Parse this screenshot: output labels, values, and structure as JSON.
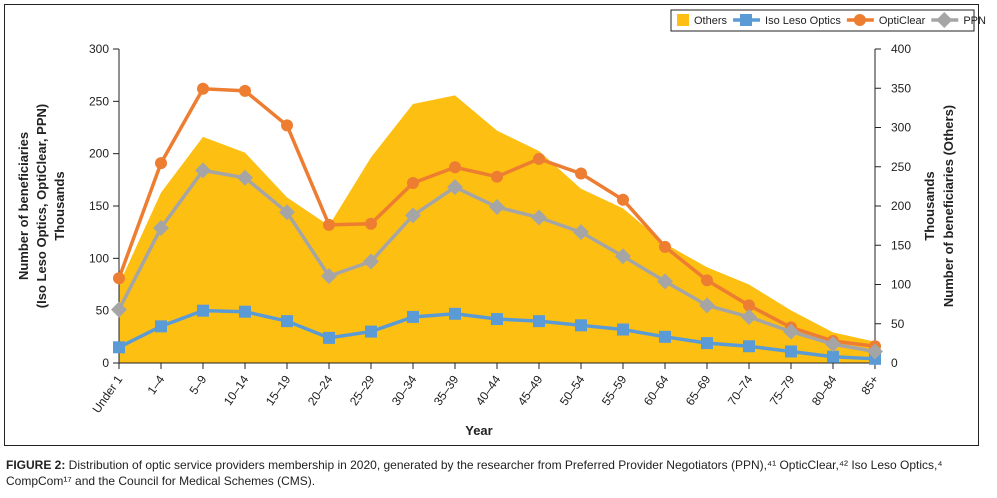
{
  "chart_data": {
    "type": "line+area",
    "categories": [
      "Under 1",
      "1–4",
      "5–9",
      "10–14",
      "15–19",
      "20–24",
      "25–29",
      "30–34",
      "35–39",
      "40–44",
      "45–49",
      "50–54",
      "55–59",
      "60–64",
      "65–69",
      "70–74",
      "75–79",
      "80–84",
      "85+"
    ],
    "series": [
      {
        "name": "Others",
        "kind": "area",
        "axis": "right",
        "color": "#FDBF12",
        "values": [
          100,
          217,
          288,
          268,
          211,
          175,
          262,
          330,
          341,
          296,
          270,
          222,
          197,
          152,
          122,
          100,
          67,
          39,
          27
        ]
      },
      {
        "name": "Iso Leso Optics",
        "kind": "line",
        "marker": "square",
        "axis": "left",
        "color": "#5B9BD5",
        "values": [
          15,
          35,
          50,
          49,
          40,
          24,
          30,
          44,
          47,
          42,
          40,
          36,
          32,
          25,
          19,
          16,
          11,
          6,
          4
        ]
      },
      {
        "name": "OptiClear",
        "kind": "line",
        "marker": "circle",
        "axis": "left",
        "color": "#ED7D31",
        "values": [
          81,
          191,
          262,
          260,
          227,
          132,
          133,
          172,
          187,
          178,
          195,
          181,
          156,
          111,
          79,
          55,
          34,
          21,
          16
        ]
      },
      {
        "name": "PPN",
        "kind": "line",
        "marker": "diamond",
        "axis": "left",
        "color": "#A5A5A5",
        "values": [
          51,
          129,
          184,
          177,
          144,
          83,
          97,
          141,
          168,
          149,
          139,
          125,
          102,
          78,
          55,
          44,
          30,
          18,
          11
        ]
      }
    ],
    "xlabel": "Year",
    "ylabel_left": [
      "Number of beneficiaries",
      "(Iso Leso Optics, OptiClear, PPN)",
      "Thousands"
    ],
    "ylabel_right": [
      "Thousands",
      "Number of beneficiaries (Others)"
    ],
    "ylim_left": [
      0,
      300
    ],
    "yticks_left": [
      "0",
      "50",
      "100",
      "150",
      "200",
      "250",
      "300"
    ],
    "ylim_right": [
      0,
      400
    ],
    "yticks_right": [
      "0",
      "50",
      "100",
      "150",
      "200",
      "250",
      "300",
      "350",
      "400"
    ],
    "legend_position": "top-right",
    "grid": false
  },
  "caption": {
    "label": "FIGURE 2:",
    "text": " Distribution of optic service providers membership in 2020, generated by the researcher from Preferred Provider Negotiators (PPN),⁴¹ OpticClear,⁴² Iso Leso Optics,⁴ CompCom¹⁷ and the Council for Medical Schemes (CMS)."
  }
}
